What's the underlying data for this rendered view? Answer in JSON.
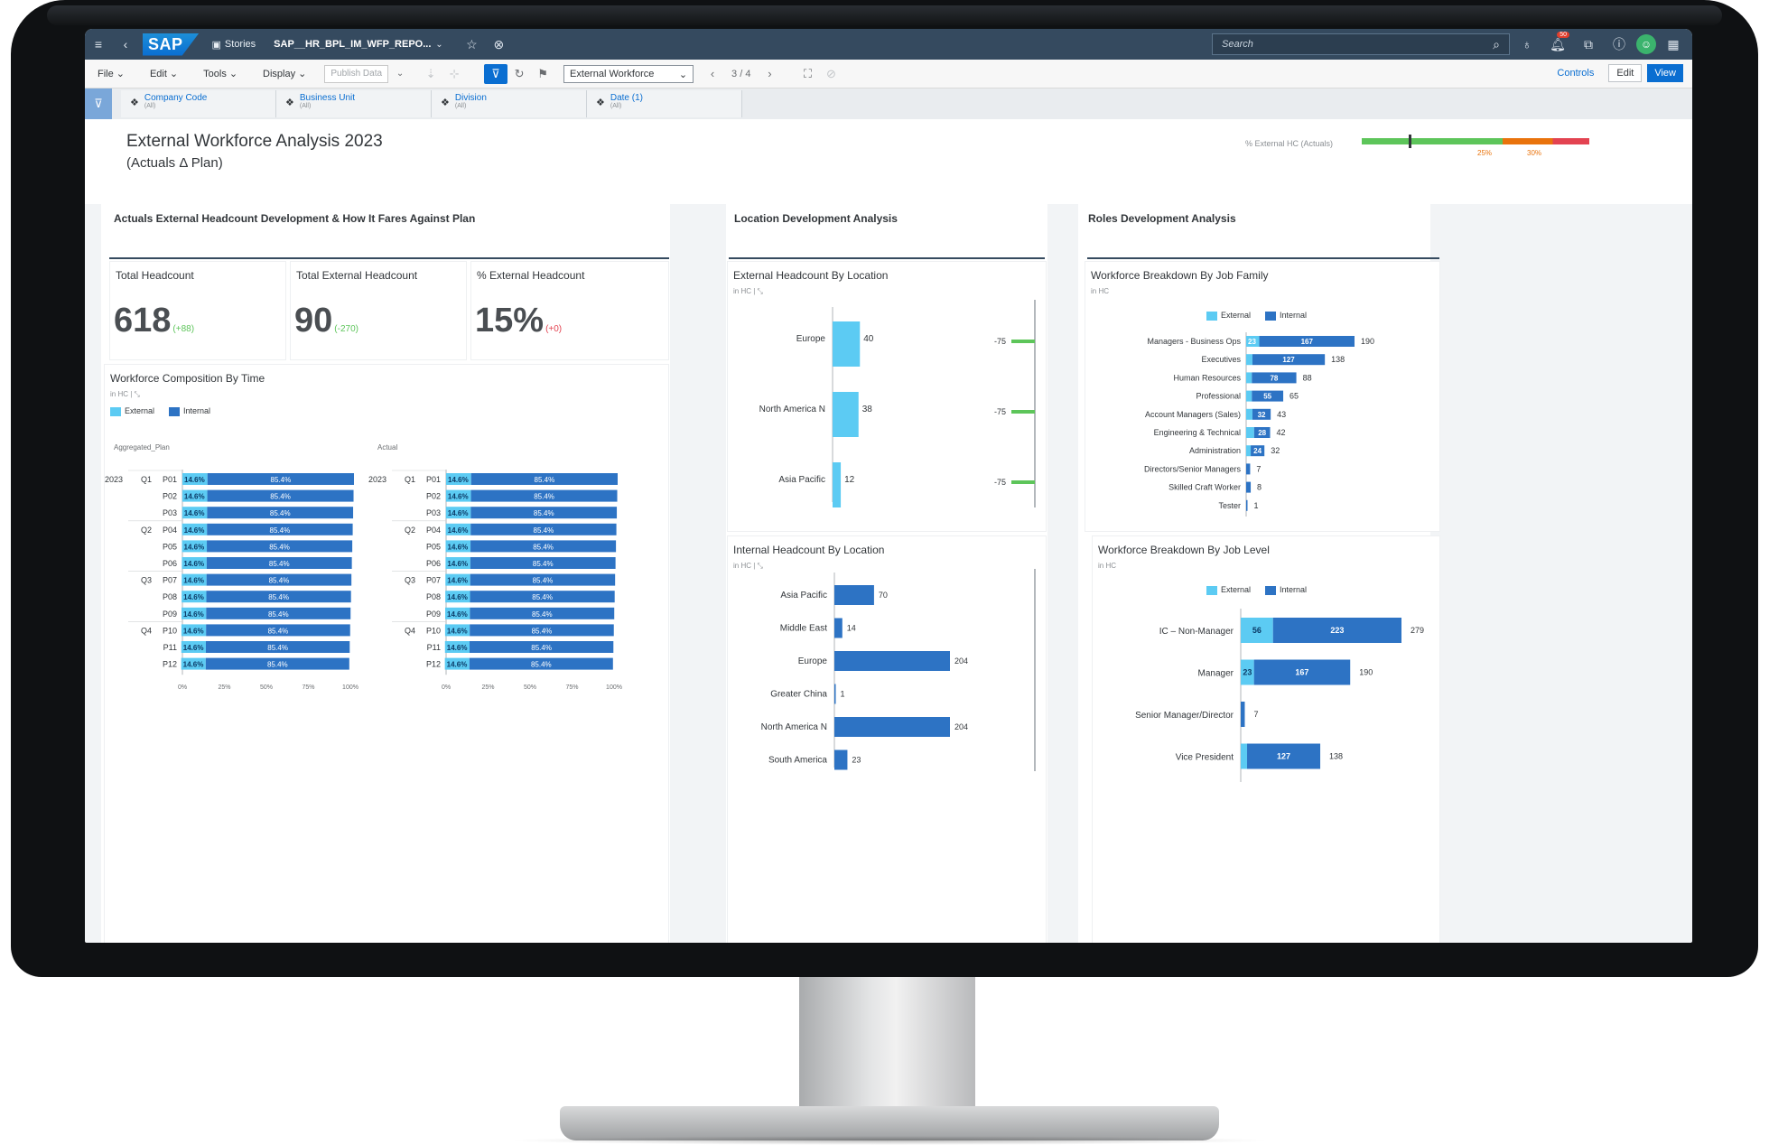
{
  "shell": {
    "logo": "SAP",
    "stories_label": "Stories",
    "file_title": "SAP__HR_BPL_IM_WFP_REPO...",
    "search_placeholder": "Search",
    "notification_count": "50"
  },
  "toolbar": {
    "file": "File",
    "edit": "Edit",
    "tools": "Tools",
    "display": "Display",
    "publish_data": "Publish Data",
    "page_select": "External Workforce",
    "page_indicator": "3 / 4",
    "controls": "Controls",
    "edit_mode": "Edit",
    "view_mode": "View"
  },
  "filters": [
    {
      "name": "Company Code",
      "value": "(All)"
    },
    {
      "name": "Business Unit",
      "value": "(All)"
    },
    {
      "name": "Division",
      "value": "(All)"
    },
    {
      "name": "Date (1)",
      "value": "(All)"
    }
  ],
  "header": {
    "title": "External Workforce Analysis 2023",
    "subtitle": "(Actuals Δ Plan)",
    "kpi_label": "% External HC (Actuals)",
    "kpi_value": 15,
    "kpi_tick_25": "25%",
    "kpi_tick_30": "30%"
  },
  "colors": {
    "external": "#5ccbf3",
    "internal": "#2d73c4",
    "shell": "#354a5f",
    "accent": "#0a6ed1",
    "positive": "#5dc55a",
    "negative": "#e34351"
  },
  "sections": {
    "actuals": "Actuals External Headcount Development & How It Fares Against Plan",
    "location": "Location Development Analysis",
    "roles": "Roles Development Analysis"
  },
  "kpis": [
    {
      "label": "Total Headcount",
      "value": "618",
      "delta": "(+88)",
      "delta_color": "#5dc55a"
    },
    {
      "label": "Total External Headcount",
      "value": "90",
      "delta": "(-270)",
      "delta_color": "#5dc55a"
    },
    {
      "label": "% External Headcount",
      "value": "15%",
      "delta": "(+0)",
      "delta_color": "#e34351"
    }
  ],
  "legend": {
    "external": "External",
    "internal": "Internal"
  },
  "unit_label": "in HC",
  "chart_data": [
    {
      "type": "bar",
      "title": "Workforce Composition By Time",
      "panel_label": "Aggregated_Plan",
      "orientation": "horizontal-stacked-percent",
      "year": "2023",
      "quarters": [
        "Q1",
        "Q2",
        "Q3",
        "Q4"
      ],
      "categories": [
        "P01",
        "P02",
        "P03",
        "P04",
        "P05",
        "P06",
        "P07",
        "P08",
        "P09",
        "P10",
        "P11",
        "P12"
      ],
      "series": [
        {
          "name": "External",
          "values": [
            14.6,
            14.6,
            14.6,
            14.6,
            14.6,
            14.6,
            14.6,
            14.6,
            14.6,
            14.6,
            14.6,
            14.6
          ]
        },
        {
          "name": "Internal",
          "values": [
            85.4,
            85.4,
            85.4,
            85.4,
            85.4,
            85.4,
            85.4,
            85.4,
            85.4,
            85.4,
            85.4,
            85.4
          ]
        }
      ],
      "xticks": [
        "0%",
        "25%",
        "50%",
        "75%",
        "100%"
      ]
    },
    {
      "type": "bar",
      "panel_label": "Actual",
      "orientation": "horizontal-stacked-percent",
      "year": "2023",
      "quarters": [
        "Q1",
        "Q2",
        "Q3",
        "Q4"
      ],
      "categories": [
        "P01",
        "P02",
        "P03",
        "P04",
        "P05",
        "P06",
        "P07",
        "P08",
        "P09",
        "P10",
        "P11",
        "P12"
      ],
      "series": [
        {
          "name": "External",
          "values": [
            14.6,
            14.6,
            14.6,
            14.6,
            14.6,
            14.6,
            14.6,
            14.6,
            14.6,
            14.6,
            14.6,
            14.6
          ]
        },
        {
          "name": "Internal",
          "values": [
            85.4,
            85.4,
            85.4,
            85.4,
            85.4,
            85.4,
            85.4,
            85.4,
            85.4,
            85.4,
            85.4,
            85.4
          ]
        }
      ],
      "xticks": [
        "0%",
        "25%",
        "50%",
        "75%",
        "100%"
      ]
    },
    {
      "type": "bar",
      "title": "External Headcount By Location",
      "categories": [
        "Europe",
        "North America N",
        "Asia Pacific"
      ],
      "values": [
        40,
        38,
        12
      ],
      "variance": [
        -75,
        -75,
        -75
      ]
    },
    {
      "type": "bar",
      "title": "Internal Headcount By Location",
      "categories": [
        "Asia Pacific",
        "Middle East",
        "Europe",
        "Greater China",
        "North America N",
        "South America"
      ],
      "values": [
        70,
        14,
        204,
        1,
        204,
        23
      ]
    },
    {
      "type": "bar",
      "title": "Workforce Breakdown By Job Family",
      "categories": [
        "Managers - Business Ops",
        "Executives",
        "Human Resources",
        "Professional",
        "Account Managers (Sales)",
        "Engineering & Technical",
        "Administration",
        "Directors/Senior Managers",
        "Skilled Craft Worker",
        "Tester"
      ],
      "series": [
        {
          "name": "External",
          "values": [
            23,
            11,
            10,
            10,
            11,
            14,
            8,
            0,
            0,
            0
          ]
        },
        {
          "name": "Internal",
          "values": [
            167,
            127,
            78,
            55,
            32,
            28,
            24,
            7,
            8,
            1
          ]
        }
      ],
      "ext_labels": [
        "23",
        "",
        "",
        "",
        "",
        "",
        "",
        "",
        "",
        ""
      ],
      "totals": [
        190,
        138,
        88,
        65,
        43,
        42,
        32,
        7,
        8,
        1
      ]
    },
    {
      "type": "bar",
      "title": "Workforce Breakdown By Job Level",
      "categories": [
        "IC – Non-Manager",
        "Manager",
        "Senior Manager/Director",
        "Vice President"
      ],
      "series": [
        {
          "name": "External",
          "values": [
            56,
            23,
            0,
            11
          ]
        },
        {
          "name": "Internal",
          "values": [
            223,
            167,
            7,
            127
          ]
        }
      ],
      "ext_labels": [
        "56",
        "23",
        "",
        ""
      ],
      "totals": [
        279,
        190,
        7,
        138
      ]
    }
  ]
}
